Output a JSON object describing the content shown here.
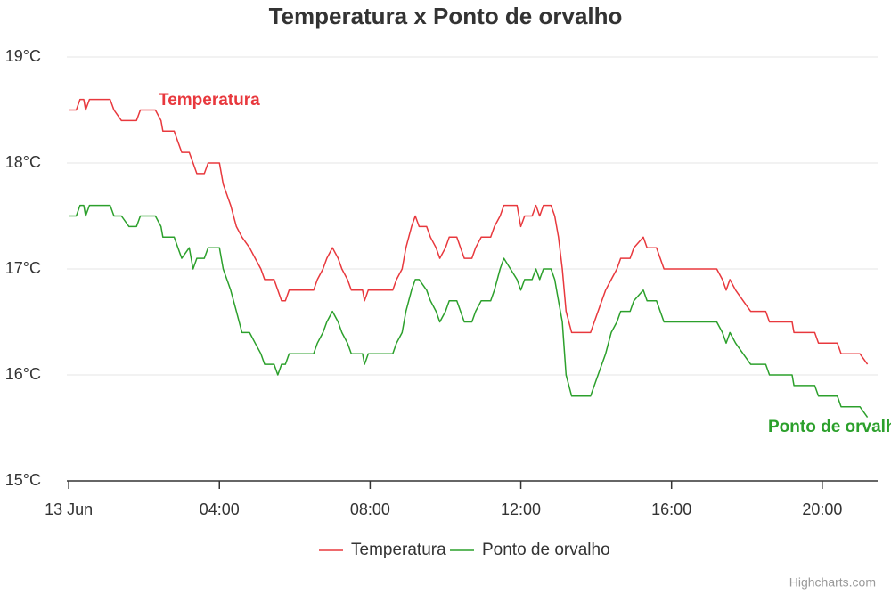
{
  "chart_data": {
    "type": "line",
    "title": "Temperatura x Ponto de orvalho",
    "x": [
      0,
      0.2,
      0.3,
      0.4,
      0.45,
      0.55,
      1.1,
      1.2,
      1.4,
      1.6,
      1.8,
      1.9,
      2.3,
      2.45,
      2.5,
      2.8,
      2.9,
      3.0,
      3.2,
      3.3,
      3.4,
      3.6,
      3.7,
      4.0,
      4.1,
      4.3,
      4.45,
      4.6,
      4.8,
      4.95,
      5.1,
      5.2,
      5.45,
      5.55,
      5.65,
      5.75,
      5.85,
      6.5,
      6.6,
      6.75,
      6.85,
      7.0,
      7.15,
      7.25,
      7.4,
      7.5,
      7.8,
      7.85,
      7.95,
      8.6,
      8.7,
      8.85,
      8.95,
      9.1,
      9.2,
      9.3,
      9.5,
      9.6,
      9.75,
      9.85,
      10.0,
      10.1,
      10.3,
      10.4,
      10.5,
      10.7,
      10.8,
      10.95,
      11.2,
      11.3,
      11.45,
      11.55,
      11.9,
      12.0,
      12.1,
      12.3,
      12.4,
      12.5,
      12.6,
      12.8,
      12.9,
      13.0,
      13.1,
      13.2,
      13.35,
      13.85,
      14.05,
      14.25,
      14.4,
      14.55,
      14.65,
      14.9,
      15.0,
      15.25,
      15.35,
      15.6,
      15.7,
      15.8,
      17.2,
      17.35,
      17.45,
      17.55,
      17.7,
      17.9,
      18.1,
      18.5,
      18.6,
      19.2,
      19.25,
      19.8,
      19.9,
      20.4,
      20.5,
      21.0,
      21.2
    ],
    "series": [
      {
        "name": "Temperatura",
        "color": "#e8383d",
        "values": [
          18.5,
          18.5,
          18.6,
          18.6,
          18.5,
          18.6,
          18.6,
          18.5,
          18.4,
          18.4,
          18.4,
          18.5,
          18.5,
          18.4,
          18.3,
          18.3,
          18.2,
          18.1,
          18.1,
          18.0,
          17.9,
          17.9,
          18.0,
          18.0,
          17.8,
          17.6,
          17.4,
          17.3,
          17.2,
          17.1,
          17.0,
          16.9,
          16.9,
          16.8,
          16.7,
          16.7,
          16.8,
          16.8,
          16.9,
          17.0,
          17.1,
          17.2,
          17.1,
          17.0,
          16.9,
          16.8,
          16.8,
          16.7,
          16.8,
          16.8,
          16.9,
          17.0,
          17.2,
          17.4,
          17.5,
          17.4,
          17.4,
          17.3,
          17.2,
          17.1,
          17.2,
          17.3,
          17.3,
          17.2,
          17.1,
          17.1,
          17.2,
          17.3,
          17.3,
          17.4,
          17.5,
          17.6,
          17.6,
          17.4,
          17.5,
          17.5,
          17.6,
          17.5,
          17.6,
          17.6,
          17.5,
          17.3,
          17.0,
          16.6,
          16.4,
          16.4,
          16.6,
          16.8,
          16.9,
          17.0,
          17.1,
          17.1,
          17.2,
          17.3,
          17.2,
          17.2,
          17.1,
          17.0,
          17.0,
          16.9,
          16.8,
          16.9,
          16.8,
          16.7,
          16.6,
          16.6,
          16.5,
          16.5,
          16.4,
          16.4,
          16.3,
          16.3,
          16.2,
          16.2,
          16.1
        ]
      },
      {
        "name": "Ponto de orvalho",
        "color": "#2ca02c",
        "values": [
          17.5,
          17.5,
          17.6,
          17.6,
          17.5,
          17.6,
          17.6,
          17.5,
          17.5,
          17.4,
          17.4,
          17.5,
          17.5,
          17.4,
          17.3,
          17.3,
          17.2,
          17.1,
          17.2,
          17.0,
          17.1,
          17.1,
          17.2,
          17.2,
          17.0,
          16.8,
          16.6,
          16.4,
          16.4,
          16.3,
          16.2,
          16.1,
          16.1,
          16.0,
          16.1,
          16.1,
          16.2,
          16.2,
          16.3,
          16.4,
          16.5,
          16.6,
          16.5,
          16.4,
          16.3,
          16.2,
          16.2,
          16.1,
          16.2,
          16.2,
          16.3,
          16.4,
          16.6,
          16.8,
          16.9,
          16.9,
          16.8,
          16.7,
          16.6,
          16.5,
          16.6,
          16.7,
          16.7,
          16.6,
          16.5,
          16.5,
          16.6,
          16.7,
          16.7,
          16.8,
          17.0,
          17.1,
          16.9,
          16.8,
          16.9,
          16.9,
          17.0,
          16.9,
          17.0,
          17.0,
          16.9,
          16.7,
          16.5,
          16.0,
          15.8,
          15.8,
          16.0,
          16.2,
          16.4,
          16.5,
          16.6,
          16.6,
          16.7,
          16.8,
          16.7,
          16.7,
          16.6,
          16.5,
          16.5,
          16.4,
          16.3,
          16.4,
          16.3,
          16.2,
          16.1,
          16.1,
          16.0,
          16.0,
          15.9,
          15.9,
          15.8,
          15.8,
          15.7,
          15.7,
          15.6
        ]
      }
    ],
    "xlim": [
      -0.05,
      21.47
    ],
    "xticks": [
      {
        "value": 0,
        "label": "13 Jun"
      },
      {
        "value": 4,
        "label": "04:00"
      },
      {
        "value": 8,
        "label": "08:00"
      },
      {
        "value": 12,
        "label": "12:00"
      },
      {
        "value": 16,
        "label": "16:00"
      },
      {
        "value": 20,
        "label": "20:00"
      }
    ],
    "ylim": [
      15,
      19
    ],
    "yticks": [
      {
        "value": 15,
        "label": "15°C"
      },
      {
        "value": 16,
        "label": "16°C"
      },
      {
        "value": 17,
        "label": "17°C"
      },
      {
        "value": 18,
        "label": "18°C"
      },
      {
        "value": 19,
        "label": "19°C"
      }
    ],
    "grid": true,
    "legend": "bottom",
    "credits": "Highcharts.com"
  }
}
